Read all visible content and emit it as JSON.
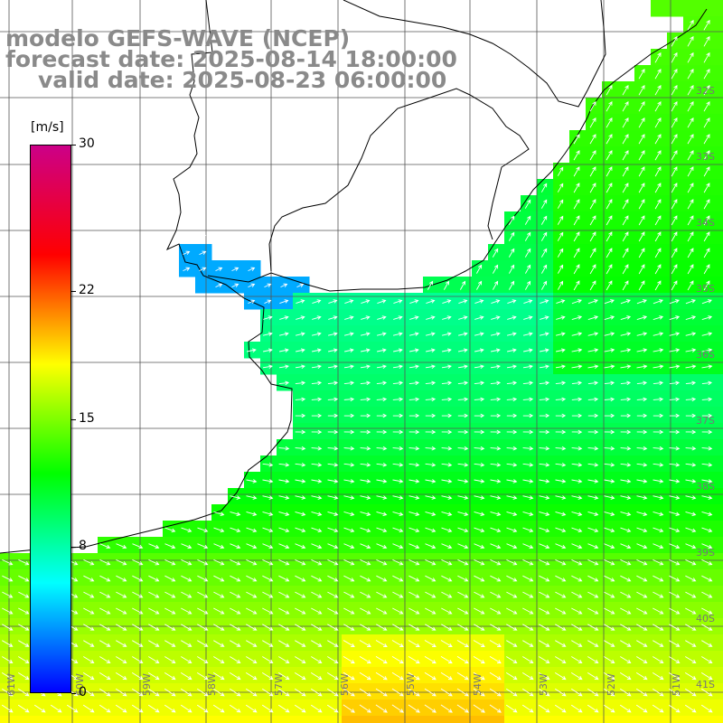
{
  "title": {
    "line1": "modelo GEFS-WAVE (NCEP)",
    "line2": "forecast date: 2025-08-14 18:00:00",
    "line3": "valid date: 2025-08-23 06:00:00"
  },
  "colorbar": {
    "unit": "[m/s]",
    "min": 0,
    "max": 30,
    "tick_labels": [
      "30",
      "22",
      "15",
      "8",
      "0"
    ],
    "tick_values": [
      30,
      22,
      15,
      8,
      0
    ],
    "colors": [
      "#0000ff",
      "#00ffff",
      "#00ff00",
      "#ffff00",
      "#ff0000",
      "#cc0088"
    ]
  },
  "map": {
    "lon_labels": [
      "61W",
      "60W",
      "59W",
      "58W",
      "57W",
      "56W",
      "55W",
      "54W",
      "53W",
      "52W",
      "51W"
    ],
    "lat_labels": [
      "32S",
      "33S",
      "34S",
      "35S",
      "36S",
      "37S",
      "38S",
      "39S",
      "40S",
      "41S"
    ],
    "extent": {
      "lon": [
        -61.8,
        -50.9
      ],
      "lat": [
        -41.3,
        -31.0
      ]
    },
    "variable": "wind speed and direction",
    "wind_regimes": [
      {
        "area": "Rio de la Plata estuary",
        "speed_ms": 4,
        "direction": "toward northeast"
      },
      {
        "area": "offshore Uruguay / southern Brazil",
        "speed_ms": 9,
        "direction": "toward northeast"
      },
      {
        "area": "southern Buenos Aires shelf",
        "speed_ms": 14,
        "direction": "toward southeast"
      },
      {
        "area": "south of 40S",
        "speed_ms": 16,
        "direction": "toward southeast"
      }
    ]
  }
}
